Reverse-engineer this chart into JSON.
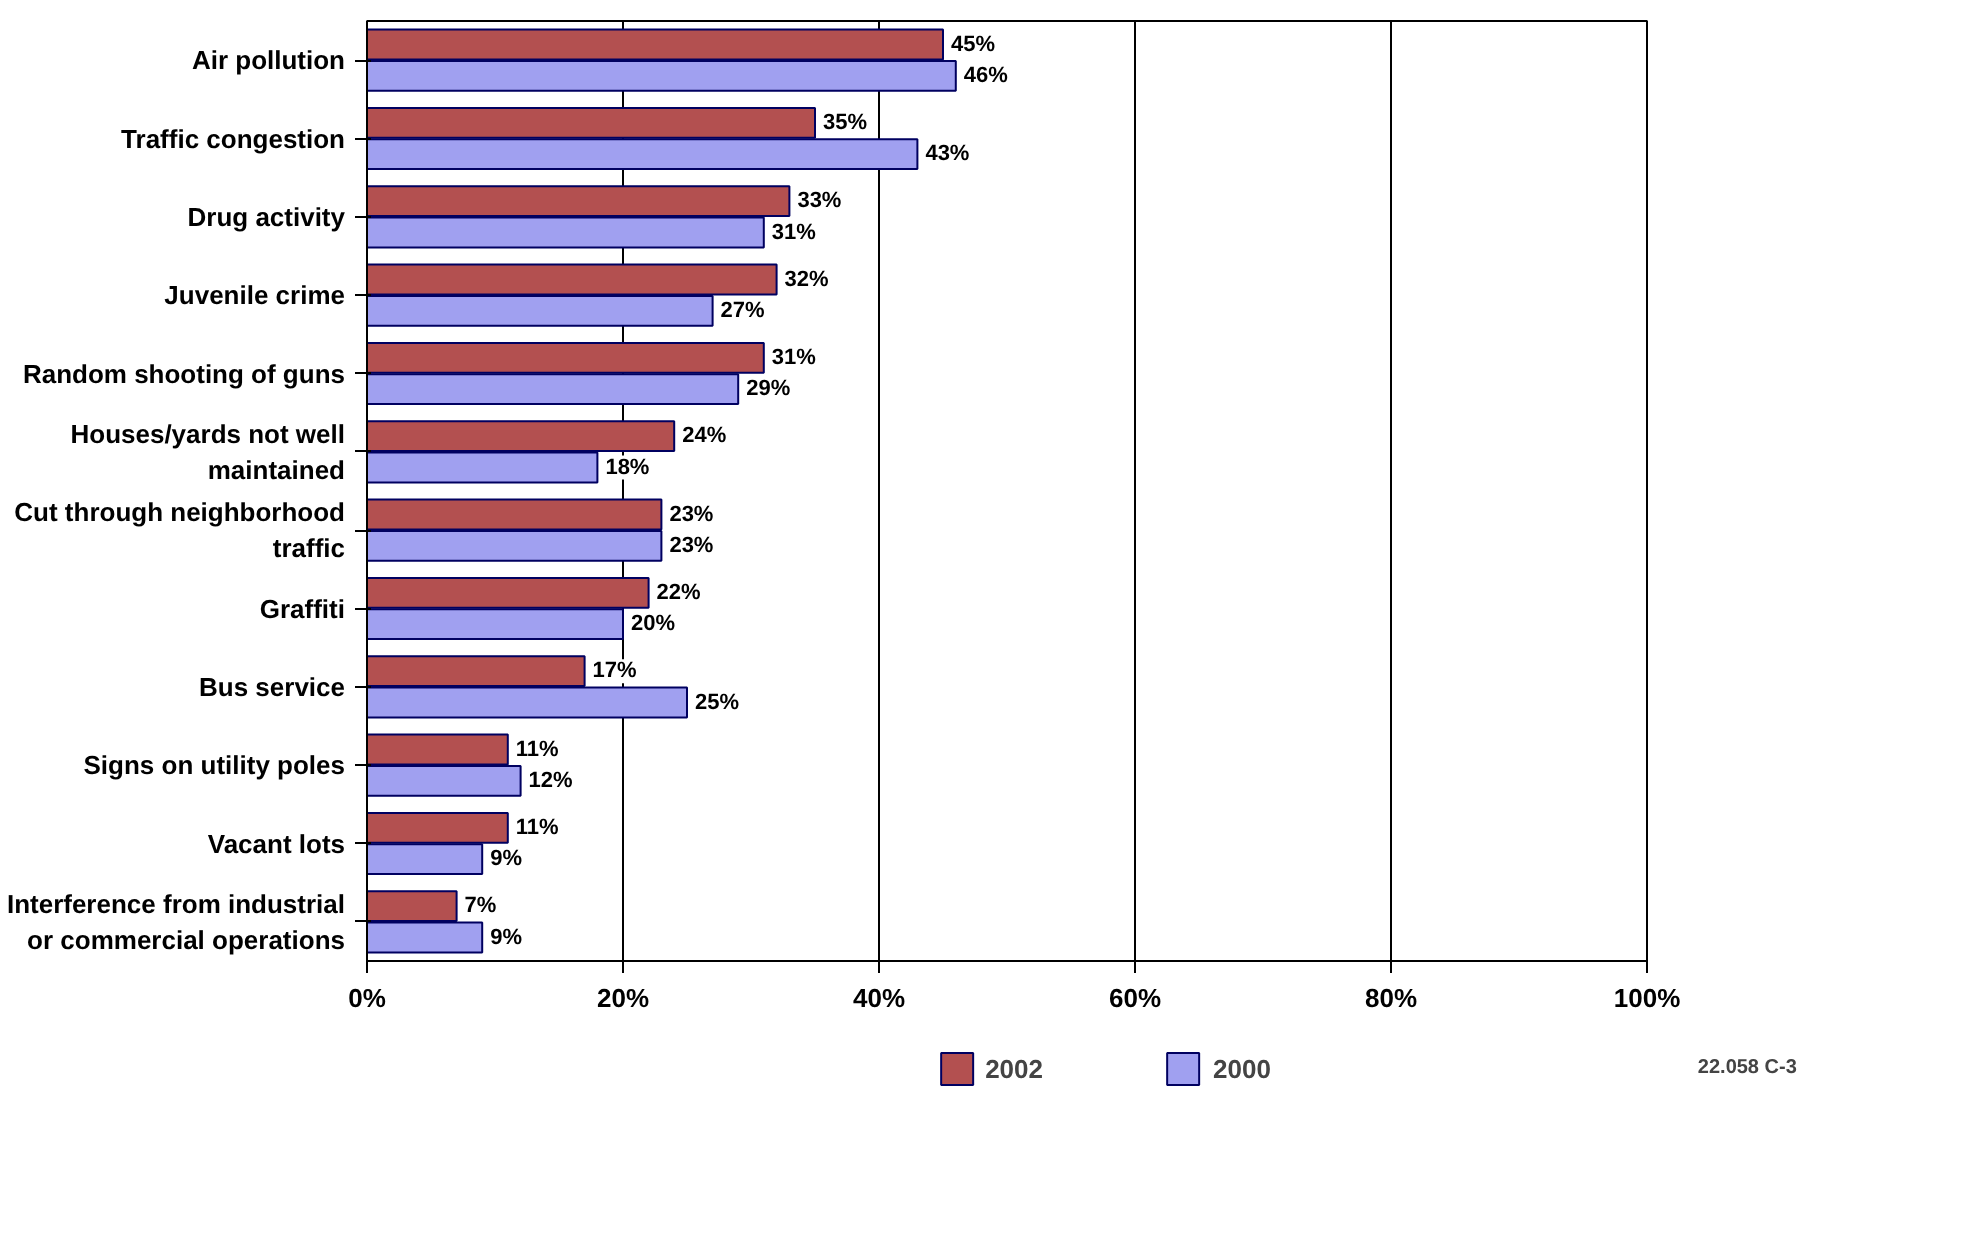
{
  "chart_data": {
    "type": "bar",
    "orientation": "horizontal",
    "categories": [
      "Air pollution",
      "Traffic congestion",
      "Drug activity",
      "Juvenile crime",
      "Random shooting of guns",
      "Houses/yards not well maintained",
      "Cut through neighborhood traffic",
      "Graffiti",
      "Bus service",
      "Signs on utility poles",
      "Vacant lots",
      "Interference from industrial or commercial operations"
    ],
    "series": [
      {
        "name": "2002",
        "color": "#b35050",
        "values": [
          45,
          35,
          33,
          32,
          31,
          24,
          23,
          22,
          17,
          11,
          11,
          7
        ],
        "value_labels": [
          "45%",
          "35%",
          "33%",
          "32%",
          "31%",
          "24%",
          "23%",
          "22%",
          "17%",
          "11%",
          "11%",
          "7%"
        ]
      },
      {
        "name": "2000",
        "color": "#a0a0f0",
        "values": [
          46,
          43,
          31,
          27,
          29,
          18,
          23,
          20,
          25,
          12,
          9,
          9
        ],
        "value_labels": [
          "46%",
          "43%",
          "31%",
          "27%",
          "29%",
          "18%",
          "23%",
          "20%",
          "25%",
          "12%",
          "9%",
          "9%"
        ]
      }
    ],
    "xlim": [
      0,
      100
    ],
    "xticks": [
      {
        "value": 0,
        "label": "0%"
      },
      {
        "value": 20,
        "label": "20%"
      },
      {
        "value": 40,
        "label": "40%"
      },
      {
        "value": 60,
        "label": "60%"
      },
      {
        "value": 80,
        "label": "80%"
      },
      {
        "value": 100,
        "label": "100%"
      }
    ],
    "grid": "x",
    "legend": "bottom",
    "annotations": [
      "22.058 C-3"
    ]
  }
}
